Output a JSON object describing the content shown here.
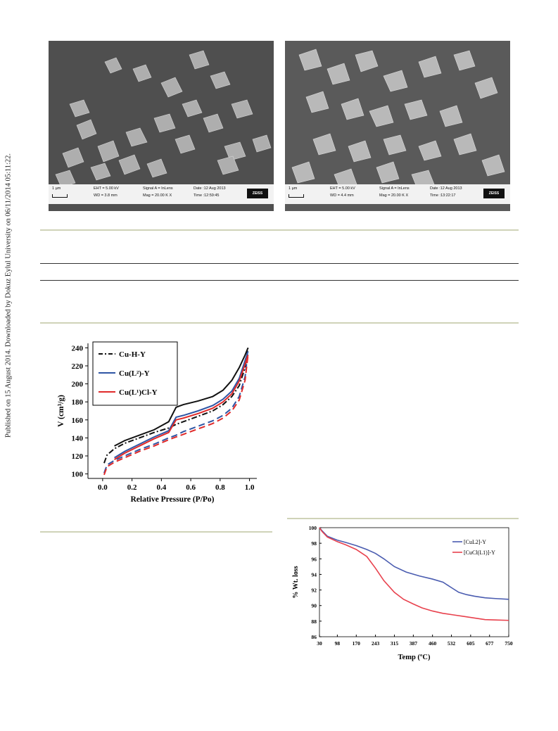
{
  "side_note": "Published on 15 August 2014. Downloaded by Dokuz Eylul University on 06/11/2014 05:11:22.",
  "sem_images": [
    {
      "scale": "1 µm",
      "eht": "EHT = 5.00 kV",
      "wd": "WD = 3.8 mm",
      "signal": "Signal A = InLens",
      "mag": "Mag =  20.00 K X",
      "date": "Date :12 Aug 2013",
      "time": "Time :12:59:45",
      "brand": "ZEISS"
    },
    {
      "scale": "1 µm",
      "eht": "EHT = 5.00 kV",
      "wd": "WD = 4.4 mm",
      "signal": "Signal A = InLens",
      "mag": "Mag =  20.00 K X",
      "date": "Date :12 Aug 2013",
      "time": "Time :13:22:17",
      "brand": "ZEISS"
    }
  ],
  "chart_data": [
    {
      "type": "line",
      "xlabel": "Relative Pressure (P/Po)",
      "ylabel": "V (cm³/g)",
      "xlim": [
        -0.1,
        1.05
      ],
      "ylim": [
        95,
        245
      ],
      "xticks": [
        "0.0",
        "0.2",
        "0.4",
        "0.6",
        "0.8",
        "1.0"
      ],
      "xtick_values": [
        0.0,
        0.2,
        0.4,
        0.6,
        0.8,
        1.0
      ],
      "yticks": [
        "100",
        "120",
        "140",
        "160",
        "180",
        "200",
        "220",
        "240"
      ],
      "ytick_values": [
        100,
        120,
        140,
        160,
        180,
        200,
        220,
        240
      ],
      "legend_placement": "top-left",
      "legend": [
        {
          "label": "Cu-H-Y",
          "color": "#111111",
          "dash": "dashdot"
        },
        {
          "label": "Cu(L²)-Y",
          "color": "#2f55a4",
          "dash": "solid"
        },
        {
          "label": "Cu(L¹)Cl-Y",
          "color": "#e02a2a",
          "dash": "solid"
        }
      ],
      "series": [
        {
          "color": "#111111",
          "branch": "adsorption",
          "x": [
            0.01,
            0.03,
            0.08,
            0.15,
            0.25,
            0.35,
            0.45,
            0.5,
            0.55,
            0.65,
            0.75,
            0.82,
            0.88,
            0.93,
            0.97,
            0.99
          ],
          "y": [
            112,
            121,
            128,
            134,
            140,
            146,
            151,
            155,
            158,
            164,
            170,
            177,
            186,
            198,
            218,
            240
          ]
        },
        {
          "color": "#111111",
          "branch": "desorption",
          "x": [
            0.99,
            0.97,
            0.93,
            0.88,
            0.82,
            0.75,
            0.65,
            0.55,
            0.5,
            0.45,
            0.35,
            0.25,
            0.15,
            0.08
          ],
          "y": [
            240,
            232,
            218,
            204,
            193,
            186,
            181,
            177,
            174,
            158,
            149,
            143,
            137,
            131
          ]
        },
        {
          "color": "#2f55a4",
          "branch": "adsorption",
          "x": [
            0.01,
            0.03,
            0.08,
            0.15,
            0.25,
            0.35,
            0.45,
            0.5,
            0.55,
            0.65,
            0.75,
            0.82,
            0.88,
            0.93,
            0.97,
            0.99
          ],
          "y": [
            101,
            110,
            115,
            120,
            127,
            133,
            140,
            143,
            147,
            153,
            159,
            165,
            173,
            186,
            208,
            236
          ]
        },
        {
          "color": "#2f55a4",
          "branch": "desorption",
          "x": [
            0.99,
            0.97,
            0.93,
            0.88,
            0.82,
            0.75,
            0.65,
            0.55,
            0.5,
            0.45,
            0.35,
            0.25,
            0.15,
            0.08
          ],
          "y": [
            236,
            226,
            206,
            192,
            183,
            176,
            170,
            165,
            163,
            148,
            141,
            133,
            125,
            118
          ]
        },
        {
          "color": "#e02a2a",
          "branch": "adsorption",
          "x": [
            0.01,
            0.03,
            0.08,
            0.15,
            0.25,
            0.35,
            0.45,
            0.5,
            0.55,
            0.65,
            0.75,
            0.82,
            0.88,
            0.93,
            0.97,
            0.99
          ],
          "y": [
            99,
            108,
            113,
            118,
            125,
            131,
            138,
            141,
            144,
            150,
            156,
            162,
            170,
            182,
            204,
            232
          ]
        },
        {
          "color": "#e02a2a",
          "branch": "desorption",
          "x": [
            0.99,
            0.97,
            0.93,
            0.88,
            0.82,
            0.75,
            0.65,
            0.55,
            0.5,
            0.45,
            0.35,
            0.25,
            0.15,
            0.08
          ],
          "y": [
            232,
            222,
            203,
            189,
            180,
            173,
            167,
            162,
            160,
            146,
            139,
            131,
            123,
            116
          ]
        }
      ]
    },
    {
      "type": "line",
      "xlabel": "Temp (ºC)",
      "ylabel": "% Wt. loss",
      "xlim": [
        30,
        750
      ],
      "ylim": [
        86,
        100
      ],
      "xticks": [
        "30",
        "98",
        "170",
        "243",
        "315",
        "387",
        "460",
        "532",
        "605",
        "677",
        "750"
      ],
      "xtick_values": [
        30,
        98,
        170,
        243,
        315,
        387,
        460,
        532,
        605,
        677,
        750
      ],
      "yticks": [
        "86",
        "88",
        "90",
        "92",
        "94",
        "96",
        "98",
        "100"
      ],
      "ytick_values": [
        86,
        88,
        90,
        92,
        94,
        96,
        98,
        100
      ],
      "legend_placement": "top-right",
      "series": [
        {
          "name": "[CuL2]-Y",
          "color": "#4a5cb0",
          "x": [
            30,
            40,
            60,
            98,
            130,
            170,
            210,
            243,
            275,
            315,
            360,
            410,
            460,
            500,
            532,
            560,
            590,
            620,
            660,
            700,
            750
          ],
          "y": [
            100,
            99.6,
            98.9,
            98.4,
            98.1,
            97.7,
            97.2,
            96.7,
            96.0,
            95.0,
            94.3,
            93.8,
            93.4,
            93.0,
            92.3,
            91.7,
            91.4,
            91.2,
            91.0,
            90.9,
            90.8
          ]
        },
        {
          "name": "[CuCl(L1)]-Y",
          "color": "#e8414d",
          "x": [
            30,
            40,
            60,
            98,
            130,
            170,
            210,
            243,
            275,
            315,
            350,
            387,
            420,
            460,
            500,
            540,
            580,
            620,
            660,
            700,
            750
          ],
          "y": [
            100,
            99.5,
            98.8,
            98.2,
            97.8,
            97.2,
            96.3,
            94.8,
            93.2,
            91.7,
            90.8,
            90.2,
            89.7,
            89.3,
            89.0,
            88.8,
            88.6,
            88.4,
            88.2,
            88.15,
            88.1
          ]
        }
      ]
    }
  ]
}
